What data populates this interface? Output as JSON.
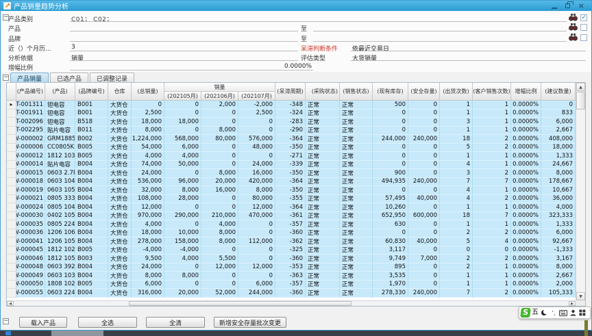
{
  "window": {
    "title": "产品销量趋势分析"
  },
  "colors": {
    "titlebar": "#35a5d8",
    "selected_row": "#c7e9fa",
    "warning_label": "#cf3a2b",
    "ime_green": "#45b62c"
  },
  "icons": {
    "check": "✓",
    "row_arrow": "▸",
    "up": "▲",
    "down": "▼",
    "left": "◀",
    "right": "▶",
    "collapse": "−",
    "close": "×",
    "window_icon": "edit-pencil",
    "search": "binoculars"
  },
  "form": {
    "to_label": "至",
    "rows": [
      {
        "label": "产品类别",
        "value": "C01；  C02；"
      },
      {
        "label": "产品"
      },
      {
        "label": "品牌"
      },
      {
        "label": "近（）个月历...",
        "value": "3",
        "right_label": "呆滞判断条件",
        "right_value": "依最近交易日"
      },
      {
        "label": "分析依据",
        "value": "销量",
        "right_label": "评估类型",
        "right_value": "大货销量"
      },
      {
        "label": "增幅比例",
        "value": "0.0000%"
      }
    ]
  },
  "tabs": [
    {
      "label": "产品销量",
      "active": true
    },
    {
      "label": "已选产品",
      "active": false
    },
    {
      "label": "已调整记录",
      "active": false
    }
  ],
  "table": {
    "group_header": "销量",
    "columns": [
      "(产品编号)",
      "(产品)",
      "(品牌编号)",
      "仓库",
      "(总销量)",
      "(202105月)",
      "(202106月)",
      "(202107月)",
      "(呆滞周期)",
      "(采购状态)",
      "(销售状态)",
      "(现有库存)",
      "(安全存量)",
      "(出货次数)",
      "(客户销售次数)",
      "增幅比例",
      "(建议数量)"
    ],
    "rows": [
      [
        "-T-001311",
        "钽电容",
        "B001",
        "大货仓",
        "0",
        "0",
        "2,000",
        "-2,000",
        "-348",
        "正常",
        "正常",
        "500",
        "0",
        "1",
        "1",
        "0.0000%",
        "0"
      ],
      [
        "-T-001911",
        "钽电容",
        "B001",
        "大货仓",
        "2,500",
        "0",
        "0",
        "2,500",
        "-324",
        "正常",
        "正常",
        "0",
        "0",
        "1",
        "1",
        "0.0000%",
        "833"
      ],
      [
        "-T-002096",
        "钽电容",
        "B518",
        "大货仓",
        "18,000",
        "18,000",
        "0",
        "0",
        "-283",
        "正常",
        "正常",
        "0",
        "0",
        "3",
        "1",
        "0.0000%",
        "6,000"
      ],
      [
        "-T-002295",
        "贴片电容",
        "B011",
        "大货仓",
        "8,000",
        "0",
        "8,000",
        "0",
        "-290",
        "正常",
        "正常",
        "0",
        "0",
        "1",
        "1",
        "0.0000%",
        "2,667"
      ],
      [
        "-W-000002",
        "GRM1885C1...",
        "B002",
        "大货仓",
        "1,224,000",
        "568,000",
        "80,000",
        "576,000",
        "-364",
        "正常",
        "正常",
        "244,000",
        "240,000",
        "18",
        "2",
        "0.0000%",
        "408,000"
      ],
      [
        "-W-000006",
        "CC0805KKX...",
        "B005",
        "大货仓",
        "54,000",
        "6,000",
        "0",
        "48,000",
        "-350",
        "正常",
        "正常",
        "0",
        "0",
        "5",
        "2",
        "0.0000%",
        "18,000"
      ],
      [
        "-W-000012",
        "1812 103K...",
        "B005",
        "大货仓",
        "4,000",
        "4,000",
        "0",
        "0",
        "-271",
        "正常",
        "正常",
        "0",
        "0",
        "1",
        "1",
        "0.0000%",
        "1,333"
      ],
      [
        "-W-000014",
        "贴片电容",
        "B004",
        "大货仓",
        "74,000",
        "50,000",
        "0",
        "24,000",
        "-339",
        "正常",
        "正常",
        "0",
        "0",
        "4",
        "1",
        "0.0000%",
        "24,667"
      ],
      [
        "-W-000015",
        "0603 2.7P...",
        "B004",
        "大货仓",
        "24,000",
        "0",
        "8,000",
        "16,000",
        "-350",
        "正常",
        "正常",
        "900",
        "0",
        "3",
        "2",
        "0.0000%",
        "8,000"
      ],
      [
        "-W-000018",
        "0603 104K...",
        "B004",
        "大货仓",
        "536,000",
        "96,000",
        "20,000",
        "420,000",
        "-364",
        "正常",
        "正常",
        "494,935",
        "240,000",
        "7",
        "7",
        "0.0000%",
        "178,667"
      ],
      [
        "-W-000019",
        "0603 105K...",
        "B004",
        "大货仓",
        "32,000",
        "8,000",
        "16,000",
        "8,000",
        "-350",
        "正常",
        "正常",
        "0",
        "0",
        "4",
        "1",
        "0.0000%",
        "10,667"
      ],
      [
        "-W-000021",
        "0805 333K...",
        "B004",
        "大货仓",
        "108,000",
        "28,000",
        "0",
        "80,000",
        "-355",
        "正常",
        "正常",
        "57,495",
        "40,000",
        "4",
        "2",
        "0.0000%",
        "36,000"
      ],
      [
        "-W-000024",
        "0805 104K...",
        "B004",
        "大货仓",
        "12,000",
        "0",
        "0",
        "12,000",
        "-364",
        "正常",
        "正常",
        "10,260",
        "0",
        "1",
        "1",
        "0.0000%",
        "4,000"
      ],
      [
        "-W-000030",
        "0402 105K...",
        "B004",
        "大货仓",
        "970,000",
        "290,000",
        "210,000",
        "470,000",
        "-361",
        "正常",
        "正常",
        "652,950",
        "600,000",
        "18",
        "7",
        "0.0000%",
        "323,333"
      ],
      [
        "-W-000035",
        "0805 224K...",
        "B004",
        "大货仓",
        "4,000",
        "0",
        "4,000",
        "0",
        "-357",
        "正常",
        "正常",
        "630",
        "0",
        "1",
        "1",
        "0.0000%",
        "1,333"
      ],
      [
        "-W-000036",
        "1206 106K...",
        "B004",
        "大货仓",
        "18,000",
        "10,000",
        "8,000",
        "0",
        "-360",
        "正常",
        "正常",
        "0",
        "0",
        "2",
        "2",
        "0.0000%",
        "6,000"
      ],
      [
        "-W-000041",
        "1206 105K...",
        "B004",
        "大货仓",
        "278,000",
        "158,000",
        "8,000",
        "112,000",
        "-362",
        "正常",
        "正常",
        "60,830",
        "40,000",
        "5",
        "4",
        "0.0000%",
        "92,667"
      ],
      [
        "-W-000045",
        "1812 102K...",
        "B005",
        "大货仓",
        "-4,000",
        "-4,000",
        "0",
        "0",
        "-325",
        "正常",
        "正常",
        "3,117",
        "0",
        "0",
        "0",
        "0.0000%",
        "-1,333"
      ],
      [
        "-W-000046",
        "1812 105K...",
        "B003",
        "大货仓",
        "9,500",
        "4,000",
        "5,500",
        "0",
        "-360",
        "正常",
        "正常",
        "9,749",
        "7,000",
        "2",
        "2",
        "0.0000%",
        "3,167"
      ],
      [
        "-W-000048",
        "0603 392K...",
        "B004",
        "大货仓",
        "24,000",
        "0",
        "12,000",
        "12,000",
        "-353",
        "正常",
        "正常",
        "895",
        "0",
        "2",
        "1",
        "0.0000%",
        "8,000"
      ],
      [
        "-W-000049",
        "0603 103K...",
        "B004",
        "大货仓",
        "8,000",
        "8,000",
        "0",
        "0",
        "-363",
        "正常",
        "正常",
        "3,535",
        "0",
        "1",
        "1",
        "0.0000%",
        "2,667"
      ],
      [
        "-W-000050",
        "1808 102K...",
        "B005",
        "大货仓",
        "6,000",
        "0",
        "0",
        "6,000",
        "-357",
        "正常",
        "正常",
        "1,970",
        "0",
        "1",
        "1",
        "0.0000%",
        "2,000"
      ],
      [
        "-W-000055",
        "0603 224K...",
        "B004",
        "大货仓",
        "316,000",
        "20,000",
        "52,000",
        "244,000",
        "-360",
        "正常",
        "正常",
        "278,330",
        "240,000",
        "7",
        "2",
        "0.0000%",
        "105,333"
      ]
    ]
  },
  "buttons": [
    "载入产品",
    "全选",
    "全清",
    "新增安全存量批次变更"
  ],
  "ime": {
    "brand": "S",
    "mode": "五"
  }
}
